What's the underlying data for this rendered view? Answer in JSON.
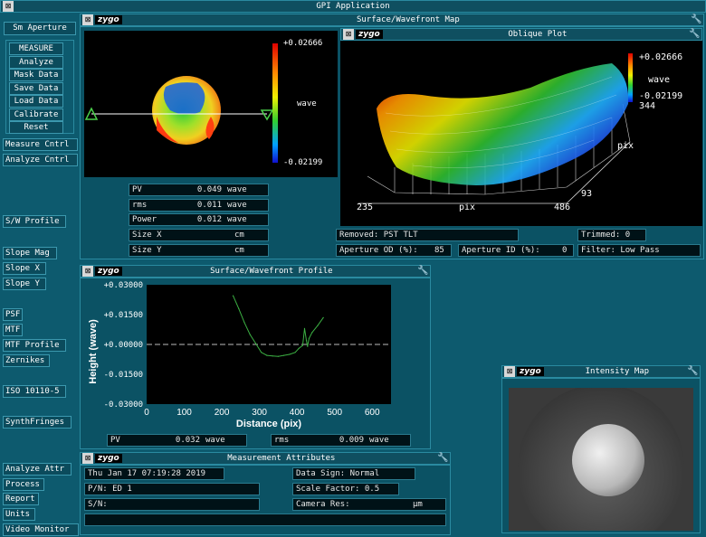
{
  "app": {
    "title": "GPI Application"
  },
  "side": {
    "sm_aperture": "Sm Aperture",
    "measure": "MEASURE",
    "analyze": "Analyze",
    "mask_data": "Mask Data",
    "save_data": "Save Data",
    "load_data": "Load Data",
    "calibrate": "Calibrate",
    "reset": "Reset",
    "measure_cntrl": "Measure Cntrl",
    "analyze_cntrl": "Analyze Cntrl",
    "sw_profile": "S/W Profile",
    "slope_mag": "Slope Mag",
    "slope_x": "Slope X",
    "slope_y": "Slope Y",
    "psf": "PSF",
    "mtf": "MTF",
    "mtf_profile": "MTF Profile",
    "zernikes": "Zernikes",
    "iso": "ISO 10110-5",
    "synthfringes": "SynthFringes",
    "analyze_attr": "Analyze Attr",
    "process": "Process",
    "report": "Report",
    "units": "Units",
    "video_monitor": "Video Monitor"
  },
  "sw_map": {
    "title": "Surface/Wavefront Map",
    "scale_max": "+0.02666",
    "scale_min": "-0.02199",
    "scale_unit": "wave",
    "stats": [
      {
        "name": "PV",
        "value": "0.049",
        "unit": "wave"
      },
      {
        "name": "rms",
        "value": "0.011",
        "unit": "wave"
      },
      {
        "name": "Power",
        "value": "0.012",
        "unit": "wave"
      },
      {
        "name": "Size X",
        "value": "",
        "unit": "cm"
      },
      {
        "name": "Size Y",
        "value": "",
        "unit": "cm"
      }
    ]
  },
  "oblique": {
    "title": "Oblique Plot",
    "scale_max": "+0.02666",
    "scale_unit": "wave",
    "scale_min": "-0.02199",
    "top_val": "344",
    "ax_pix": "pix",
    "ax_93": "93",
    "x_start": "235",
    "x_label": "pix",
    "x_end": "486",
    "removed": "Removed: PST TLT",
    "trimmed": "Trimmed:  0",
    "ap_od_label": "Aperture OD (%):",
    "ap_od": "85",
    "ap_id_label": "Aperture ID (%):",
    "ap_id": "0",
    "filter": "Filter:   Low Pass"
  },
  "profile": {
    "title": "Surface/Wavefront Profile",
    "ylabel": "Height (wave)",
    "xlabel": "Distance (pix)",
    "yticks": [
      "+0.03000",
      "+0.01500",
      "+0.00000",
      "-0.01500",
      "-0.03000"
    ],
    "xticks": [
      "0",
      "100",
      "200",
      "300",
      "400",
      "500",
      "600"
    ],
    "pv_name": "PV",
    "pv_value": "0.032",
    "pv_unit": "wave",
    "rms_name": "rms",
    "rms_value": "0.009",
    "rms_unit": "wave"
  },
  "intensity": {
    "title": "Intensity Map"
  },
  "attrs": {
    "title": "Measurement Attributes",
    "date": "Thu Jan 17 07:19:28 2019",
    "pn": "P/N:  ED 1",
    "sn": "S/N:",
    "data_sign": "Data Sign:    Normal",
    "scale_factor": "Scale Factor:  0.5",
    "camera_res": "Camera Res:",
    "camera_res_unit": "µm"
  },
  "chart_data": {
    "type": "line",
    "xlabel": "Distance (pix)",
    "ylabel": "Height (wave)",
    "xlim": [
      0,
      650
    ],
    "ylim": [
      -0.03,
      0.03
    ],
    "x": [
      230,
      245,
      260,
      275,
      290,
      305,
      320,
      335,
      350,
      365,
      380,
      395,
      405,
      415,
      420,
      425,
      428,
      432,
      440,
      455,
      470
    ],
    "y": [
      0.0245,
      0.018,
      0.011,
      0.005,
      0.0005,
      -0.004,
      -0.0055,
      -0.0058,
      -0.006,
      -0.0055,
      -0.005,
      -0.004,
      -0.002,
      -0.0005,
      0.008,
      0.002,
      -0.001,
      0.003,
      0.006,
      0.0095,
      0.0135
    ],
    "color": "#3cb043"
  },
  "colors": {
    "bg": "#0d5a6e",
    "panel": "#0b5264",
    "line": "#3cb043"
  }
}
